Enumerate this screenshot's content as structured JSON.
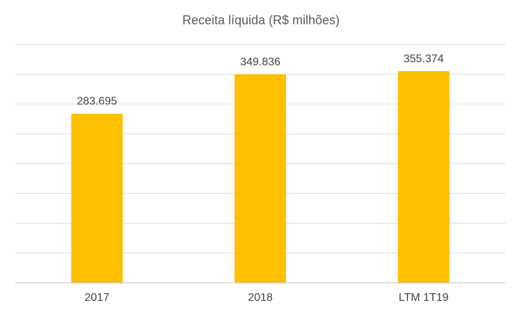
{
  "chart_data": {
    "type": "bar",
    "title": "Receita líquida (R$ milhões)",
    "xlabel": "",
    "ylabel": "",
    "categories": [
      "2017",
      "2018",
      "LTM 1T19"
    ],
    "values": [
      283695,
      349836,
      355374
    ],
    "value_labels": [
      "283.695",
      "349.836",
      "355.374"
    ],
    "ylim": [
      0,
      400000
    ],
    "y_gridline_step": 50000,
    "y_tick_labels_visible": false,
    "grid": true,
    "legend": "none",
    "colors": {
      "bar": "#FFC000",
      "gridline": "#D9D9D9",
      "axis": "#BFBFBF",
      "text": "#404040"
    }
  }
}
